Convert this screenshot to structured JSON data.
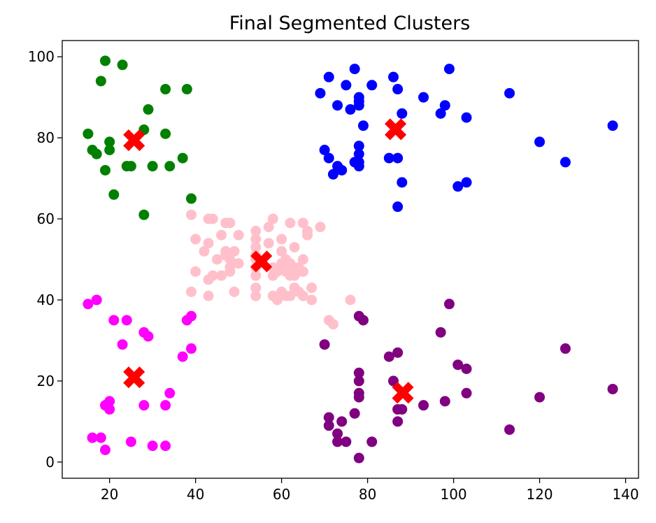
{
  "chart_data": {
    "type": "scatter",
    "title": "Final Segmented Clusters",
    "xlabel": "",
    "ylabel": "",
    "xlim": [
      9,
      143
    ],
    "ylim": [
      -4,
      104
    ],
    "xticks": [
      20,
      40,
      60,
      80,
      100,
      120,
      140
    ],
    "yticks": [
      0,
      20,
      40,
      60,
      80,
      100
    ],
    "grid": false,
    "legend": "none",
    "series": [
      {
        "color": "#008000",
        "points": [
          [
            19,
            99
          ],
          [
            23,
            98
          ],
          [
            18,
            94
          ],
          [
            33,
            92
          ],
          [
            38,
            92
          ],
          [
            29,
            87
          ],
          [
            28,
            82
          ],
          [
            15,
            81
          ],
          [
            33,
            81
          ],
          [
            20,
            79
          ],
          [
            16,
            77
          ],
          [
            17,
            76
          ],
          [
            20,
            77
          ],
          [
            24,
            73
          ],
          [
            25,
            73
          ],
          [
            30,
            73
          ],
          [
            34,
            73
          ],
          [
            37,
            75
          ],
          [
            19,
            72
          ],
          [
            21,
            66
          ],
          [
            39,
            65
          ],
          [
            28,
            61
          ]
        ]
      },
      {
        "color": "#0000ff",
        "points": [
          [
            71,
            95
          ],
          [
            77,
            97
          ],
          [
            86,
            95
          ],
          [
            99,
            97
          ],
          [
            69,
            91
          ],
          [
            75,
            93
          ],
          [
            81,
            93
          ],
          [
            87,
            92
          ],
          [
            78,
            90
          ],
          [
            73,
            88
          ],
          [
            76,
            87
          ],
          [
            78,
            89
          ],
          [
            78,
            88
          ],
          [
            93,
            90
          ],
          [
            98,
            88
          ],
          [
            97,
            86
          ],
          [
            88,
            86
          ],
          [
            103,
            85
          ],
          [
            113,
            91
          ],
          [
            79,
            83
          ],
          [
            137,
            83
          ],
          [
            70,
            77
          ],
          [
            71,
            75
          ],
          [
            78,
            78
          ],
          [
            78,
            76
          ],
          [
            85,
            75
          ],
          [
            87,
            75
          ],
          [
            73,
            73
          ],
          [
            78,
            74
          ],
          [
            74,
            72
          ],
          [
            72,
            71
          ],
          [
            77,
            74
          ],
          [
            78,
            73
          ],
          [
            120,
            79
          ],
          [
            126,
            74
          ],
          [
            88,
            69
          ],
          [
            101,
            68
          ],
          [
            103,
            69
          ],
          [
            87,
            63
          ]
        ]
      },
      {
        "color": "#ffc0cb",
        "points": [
          [
            39,
            61
          ],
          [
            43,
            60
          ],
          [
            44,
            60
          ],
          [
            47,
            59
          ],
          [
            48,
            59
          ],
          [
            58,
            60
          ],
          [
            40,
            55
          ],
          [
            46,
            56
          ],
          [
            50,
            56
          ],
          [
            54,
            55
          ],
          [
            54,
            57
          ],
          [
            57,
            58
          ],
          [
            60,
            55
          ],
          [
            62,
            59
          ],
          [
            65,
            59
          ],
          [
            66,
            57
          ],
          [
            69,
            58
          ],
          [
            66,
            56
          ],
          [
            43,
            54
          ],
          [
            42,
            52
          ],
          [
            47,
            51
          ],
          [
            49,
            52
          ],
          [
            54,
            53
          ],
          [
            54,
            51
          ],
          [
            57,
            54
          ],
          [
            60,
            52
          ],
          [
            63,
            53
          ],
          [
            45,
            50
          ],
          [
            47,
            52
          ],
          [
            48,
            50
          ],
          [
            50,
            49
          ],
          [
            54,
            50
          ],
          [
            55,
            49
          ],
          [
            58,
            48
          ],
          [
            60,
            49
          ],
          [
            61,
            50
          ],
          [
            62,
            49
          ],
          [
            63,
            48
          ],
          [
            64,
            48
          ],
          [
            65,
            50
          ],
          [
            40,
            47
          ],
          [
            43,
            45
          ],
          [
            44,
            46
          ],
          [
            46,
            46
          ],
          [
            48,
            47
          ],
          [
            48,
            48
          ],
          [
            54,
            48
          ],
          [
            54,
            46
          ],
          [
            58,
            46
          ],
          [
            59,
            47
          ],
          [
            61,
            47
          ],
          [
            62,
            46
          ],
          [
            63,
            46
          ],
          [
            64,
            47
          ],
          [
            65,
            47
          ],
          [
            39,
            42
          ],
          [
            43,
            41
          ],
          [
            49,
            42
          ],
          [
            54,
            43
          ],
          [
            54,
            41
          ],
          [
            58,
            41
          ],
          [
            59,
            40
          ],
          [
            60,
            42
          ],
          [
            61,
            41
          ],
          [
            62,
            41
          ],
          [
            63,
            43
          ],
          [
            64,
            42
          ],
          [
            65,
            41
          ],
          [
            67,
            43
          ],
          [
            67,
            40
          ],
          [
            76,
            40
          ],
          [
            71,
            35
          ],
          [
            72,
            34
          ]
        ]
      },
      {
        "color": "#ff00ff",
        "points": [
          [
            15,
            39
          ],
          [
            17,
            40
          ],
          [
            21,
            35
          ],
          [
            24,
            35
          ],
          [
            39,
            36
          ],
          [
            38,
            35
          ],
          [
            28,
            32
          ],
          [
            29,
            31
          ],
          [
            23,
            29
          ],
          [
            39,
            28
          ],
          [
            37,
            26
          ],
          [
            34,
            17
          ],
          [
            20,
            15
          ],
          [
            19,
            14
          ],
          [
            20,
            13
          ],
          [
            28,
            14
          ],
          [
            33,
            14
          ],
          [
            16,
            6
          ],
          [
            18,
            6
          ],
          [
            25,
            5
          ],
          [
            30,
            4
          ],
          [
            33,
            4
          ],
          [
            19,
            3
          ]
        ]
      },
      {
        "color": "#800080",
        "points": [
          [
            99,
            39
          ],
          [
            78,
            36
          ],
          [
            79,
            35
          ],
          [
            97,
            32
          ],
          [
            70,
            29
          ],
          [
            126,
            28
          ],
          [
            87,
            27
          ],
          [
            85,
            26
          ],
          [
            101,
            24
          ],
          [
            103,
            23
          ],
          [
            78,
            22
          ],
          [
            78,
            20
          ],
          [
            86,
            20
          ],
          [
            137,
            18
          ],
          [
            78,
            17
          ],
          [
            78,
            16
          ],
          [
            103,
            17
          ],
          [
            120,
            16
          ],
          [
            98,
            15
          ],
          [
            93,
            14
          ],
          [
            87,
            13
          ],
          [
            88,
            13
          ],
          [
            77,
            12
          ],
          [
            71,
            11
          ],
          [
            71,
            9
          ],
          [
            74,
            10
          ],
          [
            87,
            10
          ],
          [
            113,
            8
          ],
          [
            73,
            7
          ],
          [
            73,
            5
          ],
          [
            75,
            5
          ],
          [
            81,
            5
          ],
          [
            78,
            1
          ]
        ]
      }
    ],
    "centroids": {
      "color": "#ff0000",
      "marker": "X",
      "points": [
        [
          25.7,
          79.4
        ],
        [
          86.5,
          82.1
        ],
        [
          55.3,
          49.5
        ],
        [
          25.7,
          20.9
        ],
        [
          88.2,
          17.1
        ]
      ]
    }
  }
}
